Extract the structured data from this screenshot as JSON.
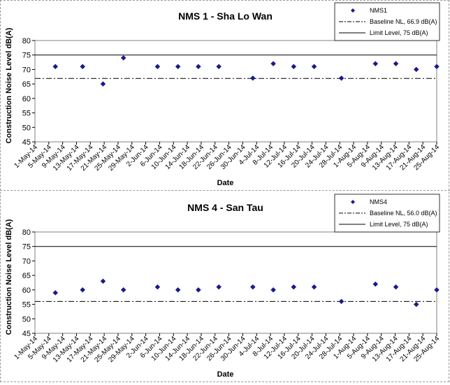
{
  "chart_data": [
    {
      "type": "scatter",
      "title": "NMS 1 - Sha Lo Wan",
      "xlabel": "Date",
      "ylabel": "Construction Noise Level  dB(A)",
      "ylim": [
        45,
        80
      ],
      "yticks": [
        45,
        50,
        55,
        60,
        65,
        70,
        75,
        80
      ],
      "x_tick_labels": [
        "1-May-14",
        "5-May-14",
        "9-May-14",
        "13-May-14",
        "17-May-14",
        "21-May-14",
        "25-May-14",
        "29-May-14",
        "2-Jun-14",
        "6-Jun-14",
        "10-Jun-14",
        "14-Jun-14",
        "18-Jun-14",
        "22-Jun-14",
        "26-Jun-14",
        "30-Jun-14",
        "4-Jul-14",
        "8-Jul-14",
        "12-Jul-14",
        "16-Jul-14",
        "20-Jul-14",
        "24-Jul-14",
        "28-Jul-14",
        "1-Aug-14",
        "5-Aug-14",
        "9-Aug-14",
        "13-Aug-14",
        "17-Aug-14",
        "21-Aug-14",
        "25-Aug-14"
      ],
      "xlim": [
        "2014-05-01",
        "2014-08-27"
      ],
      "legend_position": "top-right",
      "series": [
        {
          "name": "NMS1",
          "marker": "diamond",
          "color": "#1a1a8c",
          "points": [
            {
              "x": "2014-05-07",
              "y": 71
            },
            {
              "x": "2014-05-15",
              "y": 71
            },
            {
              "x": "2014-05-21",
              "y": 65
            },
            {
              "x": "2014-05-27",
              "y": 74
            },
            {
              "x": "2014-06-06",
              "y": 71
            },
            {
              "x": "2014-06-12",
              "y": 71
            },
            {
              "x": "2014-06-18",
              "y": 71
            },
            {
              "x": "2014-06-24",
              "y": 71
            },
            {
              "x": "2014-07-04",
              "y": 67
            },
            {
              "x": "2014-07-10",
              "y": 72
            },
            {
              "x": "2014-07-16",
              "y": 71
            },
            {
              "x": "2014-07-22",
              "y": 71
            },
            {
              "x": "2014-07-30",
              "y": 67
            },
            {
              "x": "2014-08-09",
              "y": 72
            },
            {
              "x": "2014-08-15",
              "y": 72
            },
            {
              "x": "2014-08-21",
              "y": 70
            },
            {
              "x": "2014-08-27",
              "y": 71
            }
          ]
        }
      ],
      "reference_lines": [
        {
          "name": "Baseline NL, 66.9 dB(A)",
          "y": 66.9,
          "style": "dash-dot",
          "color": "#000000"
        },
        {
          "name": "Limit Level, 75 dB(A)",
          "y": 75,
          "style": "solid",
          "color": "#000000"
        }
      ]
    },
    {
      "type": "scatter",
      "title": "NMS 4 - San Tau",
      "xlabel": "Date",
      "ylabel": "Construction Noise Level  dB(A)",
      "ylim": [
        45,
        80
      ],
      "yticks": [
        45,
        50,
        55,
        60,
        65,
        70,
        75,
        80
      ],
      "x_tick_labels": [
        "1-May-14",
        "5-May-14",
        "9-May-14",
        "13-May-14",
        "17-May-14",
        "21-May-14",
        "25-May-14",
        "29-May-14",
        "2-Jun-14",
        "6-Jun-14",
        "10-Jun-14",
        "14-Jun-14",
        "18-Jun-14",
        "22-Jun-14",
        "26-Jun-14",
        "30-Jun-14",
        "4-Jul-14",
        "8-Jul-14",
        "12-Jul-14",
        "16-Jul-14",
        "20-Jul-14",
        "24-Jul-14",
        "28-Jul-14",
        "1-Aug-14",
        "5-Aug-14",
        "9-Aug-14",
        "13-Aug-14",
        "17-Aug-14",
        "21-Aug-14",
        "25-Aug-14"
      ],
      "xlim": [
        "2014-05-01",
        "2014-08-27"
      ],
      "legend_position": "top-right",
      "series": [
        {
          "name": "NMS4",
          "marker": "diamond",
          "color": "#1a1a8c",
          "points": [
            {
              "x": "2014-05-07",
              "y": 59
            },
            {
              "x": "2014-05-15",
              "y": 60
            },
            {
              "x": "2014-05-21",
              "y": 63
            },
            {
              "x": "2014-05-27",
              "y": 60
            },
            {
              "x": "2014-06-06",
              "y": 61
            },
            {
              "x": "2014-06-12",
              "y": 60
            },
            {
              "x": "2014-06-18",
              "y": 60
            },
            {
              "x": "2014-06-24",
              "y": 61
            },
            {
              "x": "2014-07-04",
              "y": 61
            },
            {
              "x": "2014-07-10",
              "y": 60
            },
            {
              "x": "2014-07-16",
              "y": 61
            },
            {
              "x": "2014-07-22",
              "y": 61
            },
            {
              "x": "2014-07-30",
              "y": 56
            },
            {
              "x": "2014-08-09",
              "y": 62
            },
            {
              "x": "2014-08-15",
              "y": 61
            },
            {
              "x": "2014-08-21",
              "y": 55
            },
            {
              "x": "2014-08-27",
              "y": 60
            }
          ]
        }
      ],
      "reference_lines": [
        {
          "name": "Baseline NL, 56.0 dB(A)",
          "y": 56.0,
          "style": "dash-dot",
          "color": "#000000"
        },
        {
          "name": "Limit Level, 75 dB(A)",
          "y": 75,
          "style": "solid",
          "color": "#000000"
        }
      ]
    }
  ]
}
